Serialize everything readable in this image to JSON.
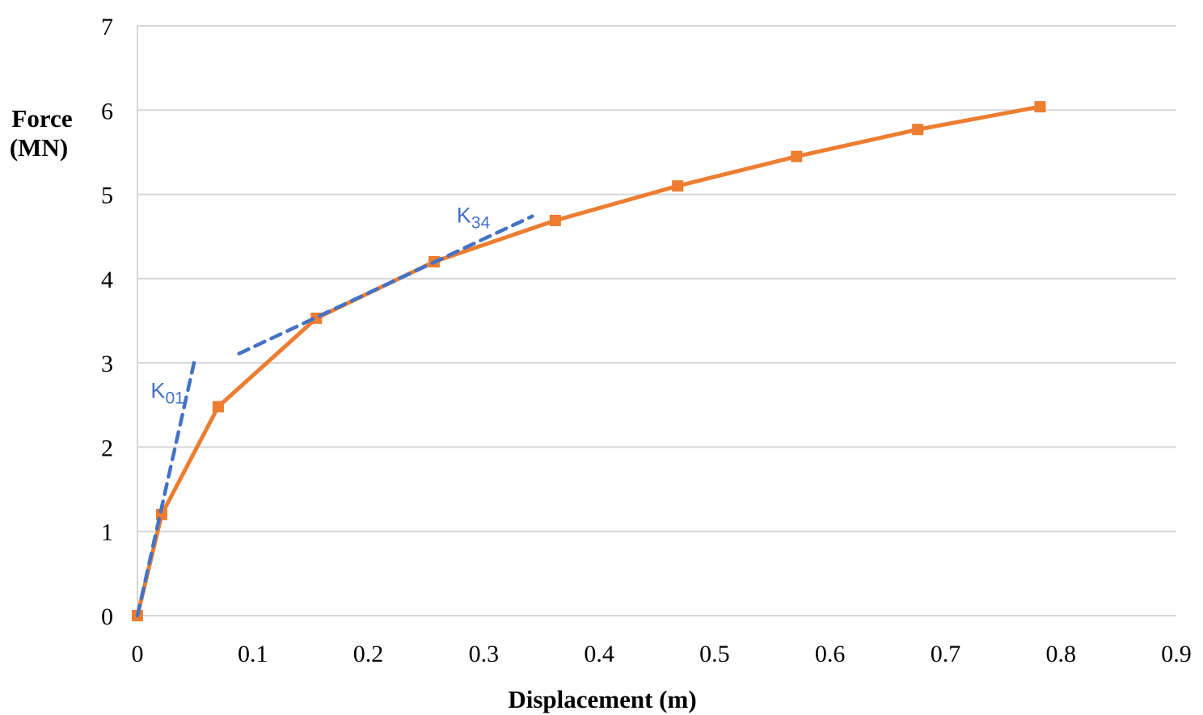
{
  "chart_data": {
    "type": "line",
    "title": "",
    "xlabel": "Displacement (m)",
    "ylabel": "Force (MN)",
    "ylabel_lines": [
      "Force",
      "(MN)"
    ],
    "xlim": [
      0,
      0.9
    ],
    "ylim": [
      0,
      7
    ],
    "x_ticks": [
      0,
      0.1,
      0.2,
      0.3,
      0.4,
      0.5,
      0.6,
      0.7,
      0.8,
      0.9
    ],
    "x_tick_labels": [
      "0",
      "0.1",
      "0.2",
      "0.3",
      "0.4",
      "0.5",
      "0.6",
      "0.7",
      "0.8",
      "0.9"
    ],
    "y_ticks": [
      0,
      1,
      2,
      3,
      4,
      5,
      6,
      7
    ],
    "y_tick_labels": [
      "0",
      "1",
      "2",
      "3",
      "4",
      "5",
      "6",
      "7"
    ],
    "grid": "horizontal-major",
    "legend": "none",
    "series": [
      {
        "name": "force-displacement-curve",
        "color": "#ED7D31",
        "marker": "square",
        "line_style": "solid",
        "points": [
          {
            "x": 0.0,
            "y": 0.0
          },
          {
            "x": 0.021,
            "y": 1.2
          },
          {
            "x": 0.07,
            "y": 2.48
          },
          {
            "x": 0.155,
            "y": 3.53
          },
          {
            "x": 0.257,
            "y": 4.2
          },
          {
            "x": 0.362,
            "y": 4.69
          },
          {
            "x": 0.468,
            "y": 5.1
          },
          {
            "x": 0.571,
            "y": 5.45
          },
          {
            "x": 0.676,
            "y": 5.77
          },
          {
            "x": 0.782,
            "y": 6.04
          }
        ]
      }
    ],
    "annotations": [
      {
        "name": "K01-stiffness-line",
        "color": "#4472C4",
        "line_style": "dashed",
        "from": {
          "x": 0.0,
          "y": 0.0
        },
        "to": {
          "x": 0.049,
          "y": 3.0
        },
        "label": {
          "base": "K",
          "sub": "01",
          "x": 0.026,
          "y": 2.67
        }
      },
      {
        "name": "K34-stiffness-line",
        "color": "#4472C4",
        "line_style": "dashed",
        "from": {
          "x": 0.088,
          "y": 3.11
        },
        "to": {
          "x": 0.342,
          "y": 4.74
        },
        "label": {
          "base": "K",
          "sub": "34",
          "x": 0.291,
          "y": 4.75
        }
      }
    ],
    "colors": {
      "series": "#ED7D31",
      "annotation": "#4472C4",
      "grid": "#D6D6D6",
      "axis": "#D6D6D6",
      "text": "#000000"
    }
  }
}
